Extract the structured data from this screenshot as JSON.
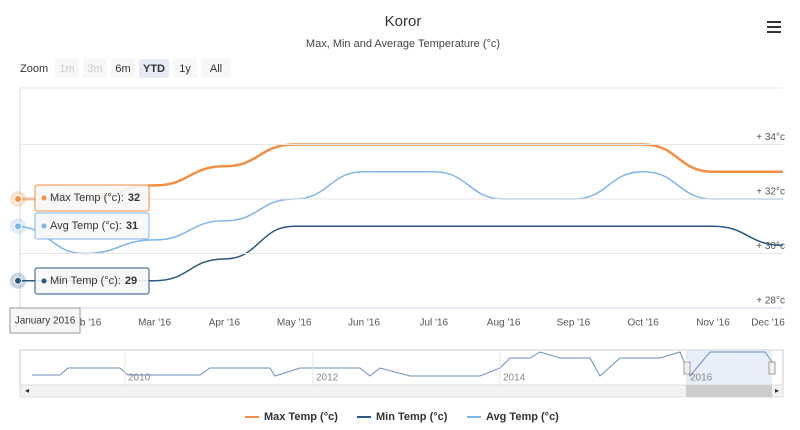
{
  "chart_data": {
    "type": "line",
    "title": "Koror",
    "subtitle": "Max, Min and Average Temperature (°c)",
    "zoom_label": "Zoom",
    "range_buttons": [
      "1m",
      "3m",
      "6m",
      "YTD",
      "1y",
      "All"
    ],
    "selected_range": "YTD",
    "categories": [
      null,
      "Feb '16",
      "Mar '16",
      "Apr '16",
      "May '16",
      "Jun '16",
      "Jul '16",
      "Aug '16",
      "Sep '16",
      "Oct '16",
      "Nov '16",
      "Dec '16"
    ],
    "ylim": [
      28,
      36
    ],
    "yticks": [
      {
        "value": 28,
        "label": "+ 28°c"
      },
      {
        "value": 30,
        "label": "+ 30°c"
      },
      {
        "value": 32,
        "label": "+ 32°c"
      },
      {
        "value": 34,
        "label": "+ 34°c"
      }
    ],
    "grid": true,
    "series": [
      {
        "name": "Max Temp (°c)",
        "color": "#f28f43",
        "values": [
          32,
          32,
          32.5,
          33.2,
          34,
          34,
          34,
          34,
          34,
          34,
          33,
          33
        ]
      },
      {
        "name": "Min Temp (°c)",
        "color": "#2b5783",
        "values": [
          29,
          29,
          29,
          29.8,
          31,
          31,
          31,
          31,
          31,
          31,
          31,
          30.3
        ]
      },
      {
        "name": "Avg Temp (°c)",
        "color": "#7cb5ec",
        "values": [
          31,
          30,
          30.5,
          31.2,
          32,
          33,
          33,
          32,
          32,
          33,
          32,
          32
        ]
      }
    ],
    "tooltip_header": "January 2016",
    "tooltip_labels": [
      "Max Temp (°c):",
      "Min Temp (°c):",
      "Avg Temp (°c):"
    ],
    "navigator_labels": [
      "2010",
      "2012",
      "2014",
      "2016"
    ]
  }
}
